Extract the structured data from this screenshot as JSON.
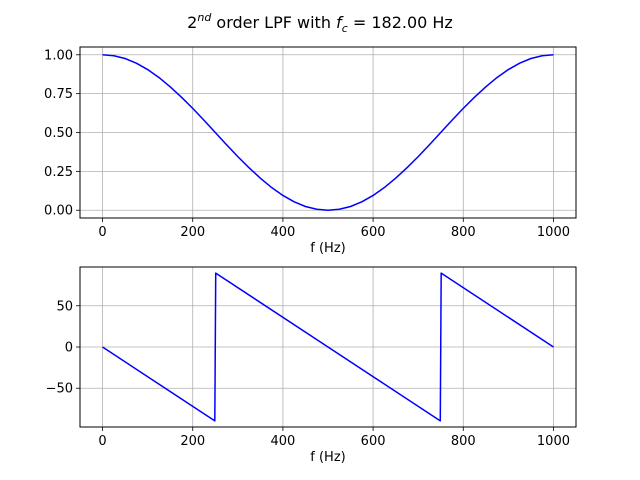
{
  "figure": {
    "title_main": "2",
    "title_sup": "nd",
    "title_mid": " order LPF with ",
    "title_var": "f",
    "title_sub": "c",
    "title_end": " = 182.00 Hz"
  },
  "chart_data": [
    {
      "type": "line",
      "title": "",
      "xlabel": "f (Hz)",
      "ylabel": "",
      "xlim": [
        -50,
        1050
      ],
      "ylim": [
        -0.05,
        1.05
      ],
      "xticks": [
        0,
        200,
        400,
        600,
        800,
        1000
      ],
      "xtick_labels": [
        "0",
        "200",
        "400",
        "600",
        "800",
        "1000"
      ],
      "yticks": [
        0.0,
        0.25,
        0.5,
        0.75,
        1.0
      ],
      "ytick_labels": [
        "0.00",
        "0.25",
        "0.50",
        "0.75",
        "1.00"
      ],
      "grid": true,
      "series": [
        {
          "color": "#0000ff",
          "x": [
            0,
            25,
            50,
            75,
            100,
            125,
            150,
            175,
            200,
            225,
            250,
            275,
            300,
            325,
            350,
            375,
            400,
            425,
            450,
            475,
            500,
            525,
            550,
            575,
            600,
            625,
            650,
            675,
            700,
            725,
            750,
            775,
            800,
            825,
            850,
            875,
            900,
            925,
            950,
            975,
            1000
          ],
          "y": [
            1.0,
            0.994,
            0.976,
            0.946,
            0.905,
            0.854,
            0.794,
            0.727,
            0.655,
            0.579,
            0.5,
            0.421,
            0.345,
            0.273,
            0.206,
            0.146,
            0.095,
            0.054,
            0.024,
            0.006,
            0.0,
            0.006,
            0.024,
            0.054,
            0.095,
            0.146,
            0.206,
            0.273,
            0.345,
            0.421,
            0.5,
            0.579,
            0.655,
            0.727,
            0.794,
            0.854,
            0.905,
            0.946,
            0.976,
            0.994,
            1.0
          ]
        }
      ]
    },
    {
      "type": "line",
      "title": "",
      "xlabel": "f (Hz)",
      "ylabel": "",
      "xlim": [
        -50,
        1050
      ],
      "ylim": [
        -97,
        97
      ],
      "xticks": [
        0,
        200,
        400,
        600,
        800,
        1000
      ],
      "xtick_labels": [
        "0",
        "200",
        "400",
        "600",
        "800",
        "1000"
      ],
      "yticks": [
        -50,
        0,
        50
      ],
      "ytick_labels": [
        "−50",
        "0",
        "50"
      ],
      "grid": true,
      "series": [
        {
          "color": "#0000ff",
          "x": [
            0,
            249,
            251,
            500,
            749,
            751,
            1000
          ],
          "y": [
            0,
            -89.6,
            89.6,
            0,
            -89.6,
            89.6,
            0
          ]
        }
      ]
    }
  ]
}
